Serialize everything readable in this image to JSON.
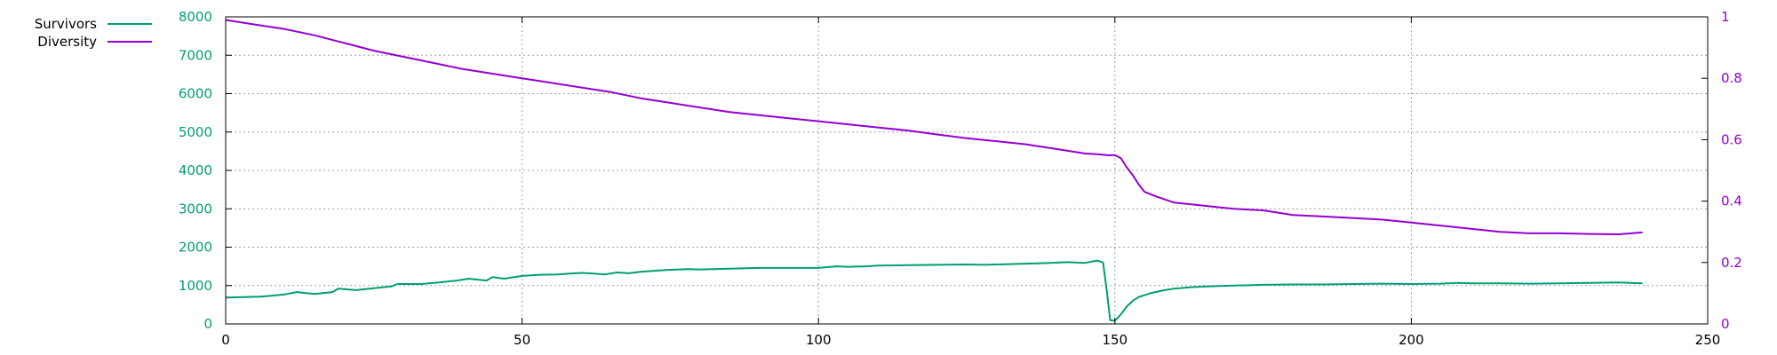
{
  "chart_data": {
    "type": "line",
    "title": "",
    "xlabel": "",
    "ylabel": "",
    "y2label": "",
    "grid": true,
    "legend_placement": "top-left, outside plot",
    "xlim": [
      0,
      250
    ],
    "ylim": [
      0,
      8000
    ],
    "y2lim": [
      0,
      1
    ],
    "x_ticks": [
      0,
      50,
      100,
      150,
      200,
      250
    ],
    "y_ticks": [
      0,
      1000,
      2000,
      3000,
      4000,
      5000,
      6000,
      7000,
      8000
    ],
    "y2_ticks": [
      0,
      0.2,
      0.4,
      0.6,
      0.8,
      1
    ],
    "left_axis_color": "#009e73",
    "right_axis_color": "#9400d3",
    "series": [
      {
        "name": "Survivors",
        "axis": "y",
        "color": "#009e73",
        "x": [
          0,
          3,
          6,
          8,
          10,
          12,
          15,
          18,
          19,
          22,
          25,
          28,
          29,
          33,
          36,
          39,
          41,
          44,
          45,
          47,
          50,
          53,
          56,
          58,
          60,
          62,
          64,
          66,
          68,
          70,
          72,
          75,
          78,
          80,
          85,
          90,
          95,
          100,
          103,
          105,
          108,
          110,
          115,
          120,
          125,
          128,
          130,
          135,
          139,
          142,
          145,
          147,
          148,
          148.6,
          149.2,
          150,
          151,
          152,
          153,
          154,
          156,
          158,
          160,
          163,
          166,
          170,
          175,
          180,
          185,
          190,
          195,
          200,
          205,
          208,
          210,
          215,
          220,
          225,
          230,
          235,
          237,
          239
        ],
        "values": [
          690,
          700,
          710,
          740,
          770,
          830,
          780,
          830,
          920,
          880,
          930,
          980,
          1040,
          1040,
          1080,
          1130,
          1180,
          1130,
          1220,
          1180,
          1250,
          1280,
          1290,
          1310,
          1330,
          1310,
          1290,
          1340,
          1320,
          1360,
          1380,
          1410,
          1430,
          1420,
          1440,
          1460,
          1460,
          1460,
          1500,
          1490,
          1500,
          1520,
          1530,
          1540,
          1550,
          1540,
          1550,
          1570,
          1590,
          1610,
          1590,
          1650,
          1600,
          900,
          100,
          80,
          250,
          450,
          600,
          700,
          800,
          870,
          920,
          960,
          980,
          1000,
          1020,
          1030,
          1030,
          1040,
          1050,
          1040,
          1050,
          1070,
          1060,
          1060,
          1050,
          1060,
          1070,
          1080,
          1070,
          1060
        ]
      },
      {
        "name": "Diversity",
        "axis": "y2",
        "color": "#9400d3",
        "x": [
          0,
          5,
          10,
          15,
          20,
          25,
          30,
          35,
          40,
          45,
          50,
          55,
          60,
          65,
          70,
          75,
          80,
          85,
          90,
          95,
          100,
          105,
          110,
          115,
          120,
          125,
          130,
          135,
          140,
          145,
          147,
          148,
          149,
          150,
          151,
          152,
          153,
          154,
          155,
          157,
          160,
          165,
          170,
          175,
          180,
          185,
          190,
          195,
          200,
          205,
          210,
          215,
          220,
          225,
          230,
          235,
          239
        ],
        "values": [
          0.99,
          0.975,
          0.96,
          0.94,
          0.915,
          0.89,
          0.87,
          0.85,
          0.83,
          0.815,
          0.8,
          0.785,
          0.77,
          0.755,
          0.735,
          0.72,
          0.705,
          0.69,
          0.68,
          0.67,
          0.66,
          0.65,
          0.64,
          0.63,
          0.617,
          0.605,
          0.595,
          0.585,
          0.57,
          0.555,
          0.553,
          0.551,
          0.549,
          0.55,
          0.54,
          0.51,
          0.485,
          0.455,
          0.43,
          0.415,
          0.395,
          0.385,
          0.375,
          0.37,
          0.355,
          0.35,
          0.345,
          0.34,
          0.33,
          0.32,
          0.31,
          0.3,
          0.295,
          0.295,
          0.293,
          0.292,
          0.298
        ]
      }
    ]
  }
}
